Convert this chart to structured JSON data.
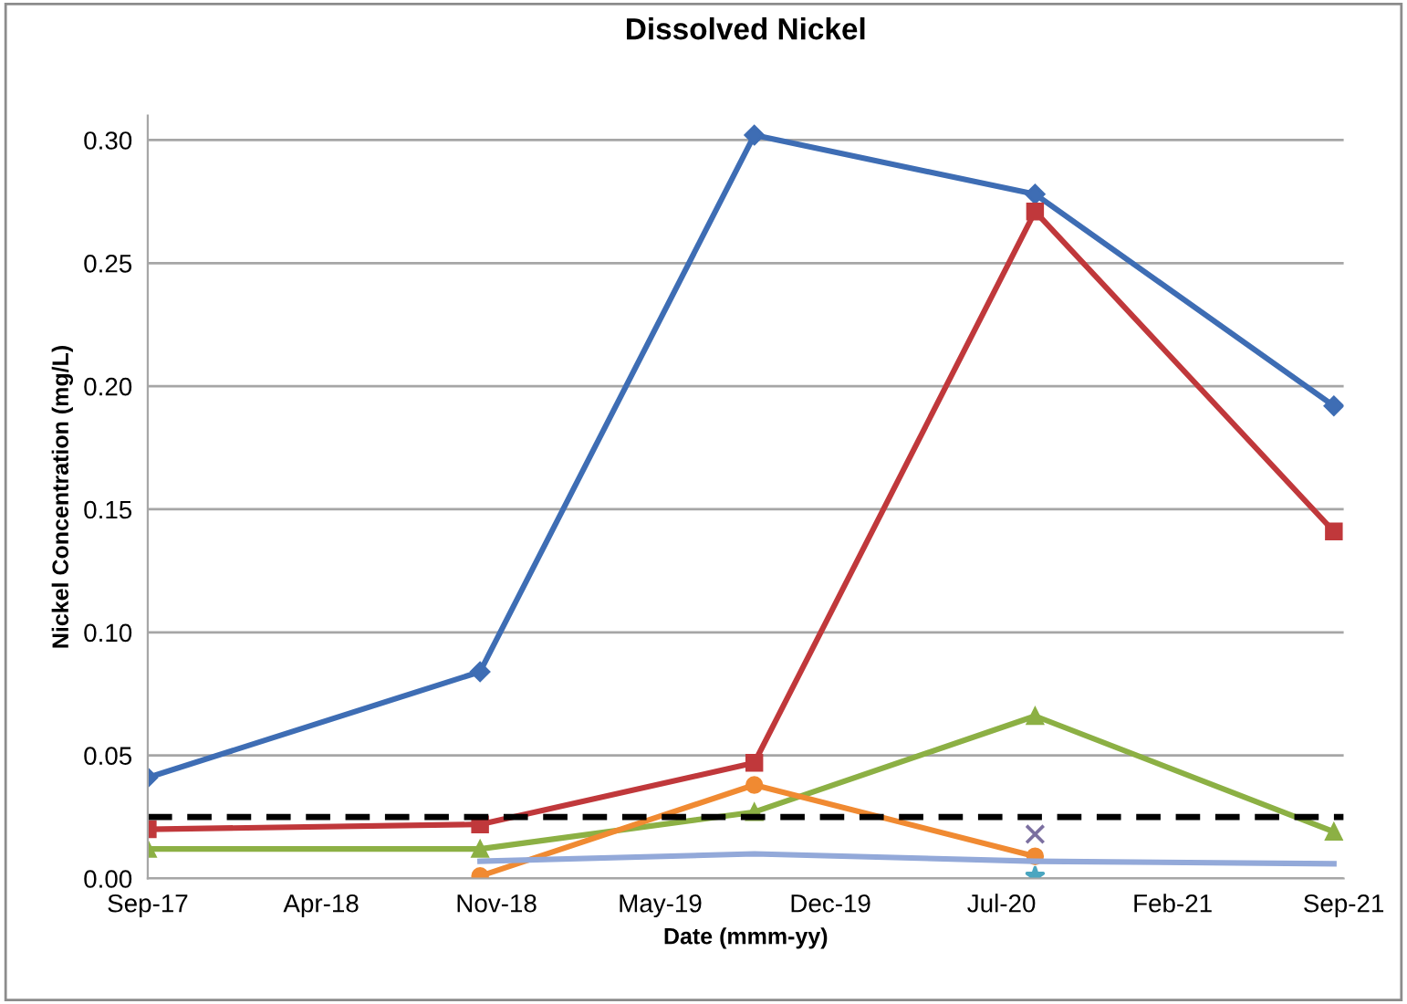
{
  "chart_data": {
    "type": "line",
    "title": "Dissolved Nickel",
    "xlabel": "Date (mmm-yy)",
    "ylabel": "Nickel Concentration (mg/L)",
    "xlim": [
      "2017-09-01",
      "2021-09-01"
    ],
    "xticks": [
      {
        "value": "2017-09-01",
        "label": "Sep-17"
      },
      {
        "value": "2018-04-01",
        "label": "Apr-18"
      },
      {
        "value": "2018-11-01",
        "label": "Nov-18"
      },
      {
        "value": "2019-05-20",
        "label": "May-19"
      },
      {
        "value": "2019-12-14",
        "label": "Dec-19"
      },
      {
        "value": "2020-07-10",
        "label": "Jul-20"
      },
      {
        "value": "2021-02-04",
        "label": "Feb-21"
      },
      {
        "value": "2021-09-01",
        "label": "Sep-21"
      }
    ],
    "ylim": [
      0,
      0.31
    ],
    "yticks": [
      {
        "value": 0,
        "label": "0.00"
      },
      {
        "value": 0.05,
        "label": "0.05"
      },
      {
        "value": 0.1,
        "label": "0.10"
      },
      {
        "value": 0.15,
        "label": "0.15"
      },
      {
        "value": 0.2,
        "label": "0.20"
      },
      {
        "value": 0.25,
        "label": "0.25"
      },
      {
        "value": 0.3,
        "label": "0.30"
      }
    ],
    "grid": "y",
    "legend": false,
    "series": [
      {
        "color": "#3e6db4",
        "marker": "diamond",
        "x": [
          "2017-09-01",
          "2018-10-12",
          "2019-09-12",
          "2020-08-20",
          "2021-08-20"
        ],
        "values": [
          0.041,
          0.084,
          0.302,
          0.278,
          0.192
        ]
      },
      {
        "color": "#c0383b",
        "marker": "square",
        "x": [
          "2017-09-01",
          "2018-10-12",
          "2019-09-12",
          "2020-08-20",
          "2021-08-20"
        ],
        "values": [
          0.02,
          0.022,
          0.047,
          0.271,
          0.141
        ]
      },
      {
        "color": "#8cb044",
        "marker": "triangle",
        "x": [
          "2017-09-01",
          "2018-10-12",
          "2019-09-12",
          "2020-08-20",
          "2021-08-20"
        ],
        "values": [
          0.012,
          0.012,
          0.027,
          0.066,
          0.019
        ]
      },
      {
        "color": "#f08a32",
        "marker": "circle",
        "x": [
          "2018-10-12",
          "2019-09-12",
          "2020-08-20"
        ],
        "values": [
          0.001,
          0.038,
          0.009
        ]
      },
      {
        "color": "#93a9d9",
        "marker": "none",
        "x": [
          "2018-10-12",
          "2019-09-12",
          "2020-08-20",
          "2021-08-20"
        ],
        "values": [
          0.007,
          0.01,
          0.007,
          0.006
        ]
      },
      {
        "type": "scatter",
        "color": "#7b6fa0",
        "marker": "cross",
        "x": [
          "2020-08-20"
        ],
        "values": [
          0.018
        ]
      },
      {
        "type": "scatter",
        "color": "#4aa6c0",
        "marker": "star",
        "x": [
          "2020-08-20"
        ],
        "values": [
          0.001
        ]
      }
    ],
    "ref_lines": [
      {
        "axis": "y",
        "value": 0.025,
        "color": "#000000",
        "line_style": "dashed"
      }
    ]
  }
}
